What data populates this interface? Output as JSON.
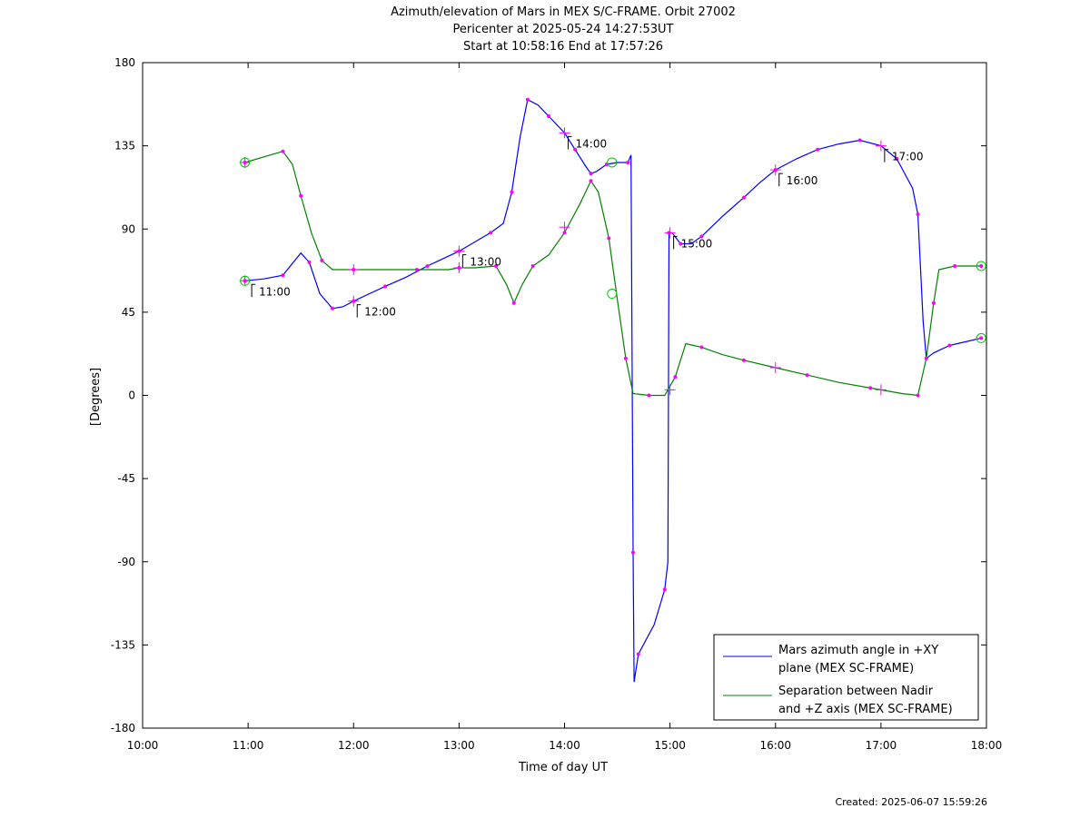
{
  "chart_data": {
    "type": "line",
    "title": [
      "Azimuth/elevation of Mars in MEX S/C-FRAME.  Orbit 27002",
      "Pericenter at 2025-05-24 14:27:53UT",
      "Start at 10:58:16 End at 17:57:26"
    ],
    "xlabel": "Time of day UT",
    "ylabel": "[Degrees]",
    "xlim": [
      10.0,
      18.0
    ],
    "ylim": [
      -180,
      180
    ],
    "x_ticks": [
      {
        "value": 10,
        "label": "10:00"
      },
      {
        "value": 11,
        "label": "11:00"
      },
      {
        "value": 12,
        "label": "12:00"
      },
      {
        "value": 13,
        "label": "13:00"
      },
      {
        "value": 14,
        "label": "14:00"
      },
      {
        "value": 15,
        "label": "15:00"
      },
      {
        "value": 16,
        "label": "16:00"
      },
      {
        "value": 17,
        "label": "17:00"
      },
      {
        "value": 18,
        "label": "18:00"
      }
    ],
    "y_ticks": [
      180,
      135,
      90,
      45,
      0,
      -45,
      -90,
      -135,
      -180
    ],
    "series": [
      {
        "name": "Mars azimuth angle in +XY plane (MEX SC-FRAME)",
        "legend": [
          "Mars azimuth angle in +XY",
          "plane (MEX SC-FRAME)"
        ],
        "color": "#0000ff",
        "points": [
          [
            10.97,
            62
          ],
          [
            11.15,
            63
          ],
          [
            11.33,
            65
          ],
          [
            11.5,
            77
          ],
          [
            11.58,
            72
          ],
          [
            11.68,
            55
          ],
          [
            11.8,
            47
          ],
          [
            11.9,
            48
          ],
          [
            12.0,
            51
          ],
          [
            12.15,
            55
          ],
          [
            12.3,
            59
          ],
          [
            12.5,
            64
          ],
          [
            12.7,
            70
          ],
          [
            12.85,
            74
          ],
          [
            13.0,
            78
          ],
          [
            13.15,
            83
          ],
          [
            13.3,
            88
          ],
          [
            13.42,
            93
          ],
          [
            13.5,
            110
          ],
          [
            13.58,
            140
          ],
          [
            13.65,
            160
          ],
          [
            13.75,
            157
          ],
          [
            13.85,
            151
          ],
          [
            14.0,
            142
          ],
          [
            14.1,
            133
          ],
          [
            14.2,
            124
          ],
          [
            14.25,
            120
          ],
          [
            14.3,
            121
          ],
          [
            14.4,
            125
          ],
          [
            14.5,
            126
          ],
          [
            14.6,
            126
          ],
          [
            14.63,
            130
          ],
          [
            14.65,
            -85
          ],
          [
            14.66,
            -155
          ],
          [
            14.7,
            -140
          ],
          [
            14.85,
            -124
          ],
          [
            14.95,
            -105
          ],
          [
            14.98,
            -90
          ],
          [
            14.99,
            88
          ],
          [
            15.02,
            88
          ],
          [
            15.1,
            82
          ],
          [
            15.2,
            82
          ],
          [
            15.3,
            86
          ],
          [
            15.5,
            97
          ],
          [
            15.7,
            107
          ],
          [
            15.85,
            115
          ],
          [
            16.0,
            122
          ],
          [
            16.2,
            128
          ],
          [
            16.4,
            133
          ],
          [
            16.6,
            136
          ],
          [
            16.8,
            138
          ],
          [
            17.0,
            135
          ],
          [
            17.15,
            128
          ],
          [
            17.3,
            112
          ],
          [
            17.35,
            98
          ],
          [
            17.4,
            40
          ],
          [
            17.43,
            20
          ],
          [
            17.5,
            23
          ],
          [
            17.65,
            27
          ],
          [
            17.8,
            29
          ],
          [
            17.95,
            31
          ]
        ]
      },
      {
        "name": "Separation between Nadir and +Z axis (MEX SC-FRAME)",
        "legend": [
          "Separation between Nadir",
          "and +Z axis (MEX SC-FRAME)"
        ],
        "color": "#008000",
        "points": [
          [
            10.97,
            126
          ],
          [
            11.15,
            129
          ],
          [
            11.33,
            132
          ],
          [
            11.42,
            125
          ],
          [
            11.5,
            108
          ],
          [
            11.6,
            88
          ],
          [
            11.7,
            73
          ],
          [
            11.8,
            68
          ],
          [
            12.0,
            68
          ],
          [
            12.3,
            68
          ],
          [
            12.6,
            68
          ],
          [
            12.9,
            68
          ],
          [
            13.0,
            69
          ],
          [
            13.15,
            69
          ],
          [
            13.35,
            70
          ],
          [
            13.45,
            60
          ],
          [
            13.52,
            50
          ],
          [
            13.6,
            60
          ],
          [
            13.7,
            70
          ],
          [
            13.85,
            76
          ],
          [
            14.0,
            88
          ],
          [
            14.15,
            104
          ],
          [
            14.25,
            116
          ],
          [
            14.32,
            110
          ],
          [
            14.42,
            85
          ],
          [
            14.5,
            52
          ],
          [
            14.58,
            20
          ],
          [
            14.65,
            1
          ],
          [
            14.8,
            0
          ],
          [
            14.95,
            0
          ],
          [
            15.05,
            10
          ],
          [
            15.15,
            28
          ],
          [
            15.3,
            26
          ],
          [
            15.5,
            22
          ],
          [
            15.7,
            19
          ],
          [
            16.0,
            15
          ],
          [
            16.3,
            11
          ],
          [
            16.6,
            7
          ],
          [
            16.9,
            4
          ],
          [
            17.2,
            1
          ],
          [
            17.35,
            0
          ],
          [
            17.43,
            20
          ],
          [
            17.5,
            50
          ],
          [
            17.55,
            68
          ],
          [
            17.7,
            70
          ],
          [
            17.85,
            70
          ],
          [
            17.95,
            70
          ]
        ]
      }
    ],
    "time_markers": [
      {
        "time": 11,
        "label": "11:00",
        "y": 62
      },
      {
        "time": 12,
        "label": "12:00",
        "y": 51
      },
      {
        "time": 13,
        "label": "13:00",
        "y": 78
      },
      {
        "time": 14,
        "label": "14:00",
        "y": 142
      },
      {
        "time": 15,
        "label": "15:00",
        "y": 88
      },
      {
        "time": 16,
        "label": "16:00",
        "y": 122
      },
      {
        "time": 17,
        "label": "17:00",
        "y": 135
      }
    ],
    "plus_markers": [
      [
        12.0,
        68
      ],
      [
        13.0,
        69
      ],
      [
        14.0,
        91
      ],
      [
        15.0,
        3
      ],
      [
        16.0,
        15
      ],
      [
        17.0,
        3
      ],
      [
        12.0,
        51
      ],
      [
        13.0,
        78
      ],
      [
        14.0,
        142
      ],
      [
        15.0,
        88
      ],
      [
        16.0,
        122
      ],
      [
        17.0,
        135
      ],
      [
        10.97,
        62
      ],
      [
        10.97,
        126
      ]
    ],
    "circle_markers": [
      [
        10.97,
        126
      ],
      [
        10.97,
        62
      ],
      [
        14.45,
        126
      ],
      [
        14.45,
        55
      ],
      [
        17.95,
        70
      ],
      [
        17.95,
        31
      ]
    ],
    "dot_color": "#ff00ff",
    "circle_color": "#00cc00",
    "legend_position": "bottom-right",
    "footer": "Created: 2025-06-07 15:59:26"
  }
}
